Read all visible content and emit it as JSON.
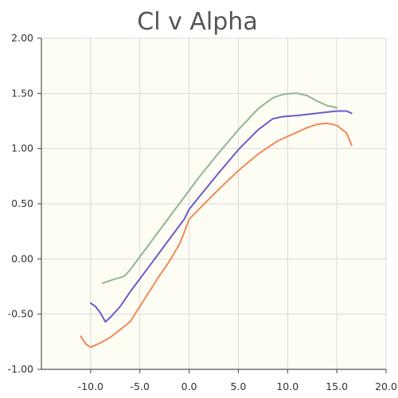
{
  "chart_data": {
    "type": "line",
    "title": "Cl v Alpha",
    "xlabel": "",
    "ylabel": "",
    "xlim": [
      -15,
      20
    ],
    "ylim": [
      -1.0,
      2.0
    ],
    "x_ticks": [
      -10,
      -5,
      0,
      5,
      10,
      15,
      20
    ],
    "x_tick_labels": [
      "-10.0",
      "-5.0",
      "0.0",
      "5.0",
      "10.0",
      "15.0",
      "20.0"
    ],
    "y_ticks": [
      -1.0,
      -0.5,
      0.0,
      0.5,
      1.0,
      1.5,
      2.0
    ],
    "y_tick_labels": [
      "-1.00",
      "-0.50",
      "0.00",
      "0.50",
      "1.00",
      "1.50",
      "2.00"
    ],
    "grid": true,
    "legend": "none",
    "background_color": "#fefdf4",
    "grid_color": "#d9d9d9",
    "series": [
      {
        "color": "#8fb59b",
        "x": [
          -8.8,
          -7.5,
          -7.0,
          -6.5,
          -6.0,
          -5.0,
          -4.0,
          -2.0,
          0.0,
          1.0,
          3.0,
          5.0,
          7.0,
          8.5,
          9.5,
          10.5,
          11.0,
          12.0,
          13.0,
          14.0,
          15.0
        ],
        "y": [
          -0.22,
          -0.18,
          -0.17,
          -0.15,
          -0.1,
          0.02,
          0.14,
          0.38,
          0.62,
          0.74,
          0.96,
          1.17,
          1.36,
          1.46,
          1.49,
          1.5,
          1.5,
          1.48,
          1.43,
          1.39,
          1.37
        ]
      },
      {
        "color": "#6a5acd",
        "x": [
          -10.0,
          -9.5,
          -9.0,
          -8.5,
          -8.0,
          -7.0,
          -6.0,
          -4.0,
          -2.0,
          -0.5,
          0.0,
          1.0,
          3.0,
          5.0,
          7.0,
          8.5,
          9.5,
          11.0,
          13.0,
          15.0,
          16.0,
          16.5
        ],
        "y": [
          -0.4,
          -0.43,
          -0.49,
          -0.57,
          -0.53,
          -0.43,
          -0.3,
          -0.06,
          0.18,
          0.36,
          0.45,
          0.56,
          0.78,
          0.99,
          1.17,
          1.27,
          1.29,
          1.3,
          1.32,
          1.34,
          1.34,
          1.32
        ]
      },
      {
        "color": "#f0885a",
        "x": [
          -11.0,
          -10.5,
          -10.0,
          -9.0,
          -8.0,
          -7.0,
          -6.0,
          -5.0,
          -4.0,
          -3.0,
          -2.0,
          -1.0,
          -0.5,
          0.0,
          1.0,
          3.0,
          5.0,
          7.0,
          9.0,
          10.0,
          11.0,
          12.0,
          13.0,
          14.0,
          15.0,
          16.0,
          16.5
        ],
        "y": [
          -0.7,
          -0.77,
          -0.8,
          -0.76,
          -0.71,
          -0.64,
          -0.57,
          -0.43,
          -0.29,
          -0.15,
          -0.02,
          0.13,
          0.24,
          0.36,
          0.45,
          0.63,
          0.8,
          0.95,
          1.07,
          1.11,
          1.15,
          1.19,
          1.22,
          1.23,
          1.21,
          1.14,
          1.03
        ]
      }
    ]
  }
}
